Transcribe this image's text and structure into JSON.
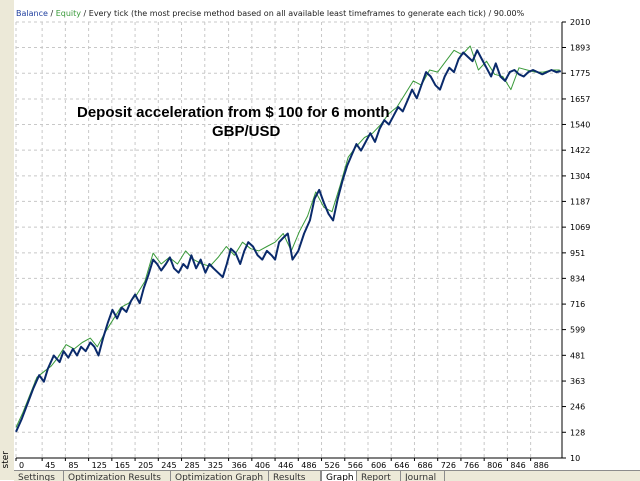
{
  "window": {
    "side_label": "ster"
  },
  "header": {
    "balance": "Balance",
    "sep": " / ",
    "equity": "Equity",
    "rest": " / Every tick (the most precise method based on all available least timeframes to generate each tick)  / 90.00%"
  },
  "colors": {
    "balance": "#0a2a6b",
    "equity": "#3a9a3a",
    "grid": "#c8c8c8",
    "header_balance": "#1f3f9f",
    "header_equity": "#3a9a3a"
  },
  "tabs": [
    {
      "label": "Settings",
      "active": false
    },
    {
      "label": "Optimization Results",
      "active": false
    },
    {
      "label": "Optimization Graph",
      "active": false
    },
    {
      "label": "Results",
      "active": false
    },
    {
      "label": "Graph",
      "active": true
    },
    {
      "label": "Report",
      "active": false
    },
    {
      "label": "Journal",
      "active": false
    }
  ],
  "chart_data": {
    "type": "line",
    "title": "Deposit  acceleration from $ 100 for 6 month",
    "subtitle": "GBP/USD",
    "xlim": [
      0,
      940
    ],
    "ylim": [
      10,
      2010
    ],
    "xticks": [
      0,
      45,
      85,
      125,
      165,
      205,
      245,
      285,
      325,
      366,
      406,
      446,
      486,
      526,
      566,
      606,
      646,
      686,
      726,
      766,
      806,
      846,
      886
    ],
    "yticks": [
      10,
      128,
      246,
      363,
      481,
      599,
      716,
      834,
      951,
      1069,
      1187,
      1304,
      1422,
      1540,
      1657,
      1775,
      1893,
      2010
    ],
    "grid": true,
    "series": [
      {
        "name": "Balance",
        "x": [
          0,
          10,
          20,
          30,
          40,
          48,
          55,
          65,
          75,
          82,
          90,
          98,
          105,
          112,
          120,
          128,
          135,
          142,
          150,
          158,
          166,
          174,
          182,
          190,
          198,
          205,
          213,
          220,
          228,
          236,
          243,
          250,
          258,
          265,
          272,
          280,
          288,
          295,
          302,
          310,
          318,
          326,
          333,
          340,
          348,
          356,
          363,
          370,
          378,
          386,
          393,
          400,
          408,
          416,
          424,
          432,
          440,
          446,
          453,
          460,
          468,
          476,
          486,
          496,
          506,
          514,
          522,
          530,
          538,
          546,
          554,
          562,
          570,
          578,
          586,
          594,
          602,
          610,
          618,
          626,
          634,
          642,
          650,
          658,
          666,
          674,
          682,
          690,
          698,
          706,
          714,
          722,
          730,
          738,
          746,
          754,
          762,
          770,
          778,
          786,
          794,
          802,
          810,
          818,
          826,
          834,
          842,
          850,
          858,
          866,
          874,
          882,
          890,
          898,
          906,
          914,
          922,
          930,
          938
        ],
        "values": [
          130,
          190,
          260,
          330,
          390,
          360,
          420,
          480,
          450,
          500,
          470,
          510,
          480,
          520,
          500,
          540,
          520,
          480,
          560,
          630,
          690,
          650,
          700,
          680,
          730,
          760,
          720,
          790,
          850,
          920,
          900,
          870,
          900,
          930,
          880,
          860,
          900,
          880,
          940,
          880,
          920,
          860,
          900,
          880,
          860,
          840,
          900,
          970,
          950,
          900,
          960,
          1000,
          980,
          940,
          920,
          960,
          940,
          920,
          1000,
          1020,
          1040,
          920,
          960,
          1040,
          1100,
          1200,
          1240,
          1180,
          1130,
          1100,
          1200,
          1280,
          1350,
          1400,
          1450,
          1420,
          1460,
          1500,
          1460,
          1520,
          1560,
          1540,
          1580,
          1620,
          1600,
          1650,
          1700,
          1660,
          1720,
          1780,
          1760,
          1720,
          1700,
          1760,
          1800,
          1780,
          1840,
          1870,
          1850,
          1830,
          1880,
          1840,
          1800,
          1760,
          1820,
          1760,
          1740,
          1780,
          1790,
          1770,
          1760,
          1780,
          1790,
          1780,
          1770,
          1780,
          1790,
          1780,
          1785
        ],
        "color": "#0a2a6b"
      },
      {
        "name": "Equity",
        "x": [
          0,
          12,
          24,
          36,
          50,
          60,
          72,
          86,
          100,
          114,
          128,
          140,
          152,
          166,
          180,
          194,
          208,
          222,
          236,
          250,
          264,
          278,
          292,
          306,
          320,
          334,
          348,
          362,
          376,
          390,
          404,
          418,
          432,
          446,
          460,
          474,
          488,
          502,
          516,
          530,
          544,
          558,
          572,
          586,
          600,
          614,
          628,
          642,
          656,
          670,
          684,
          698,
          712,
          726,
          740,
          754,
          768,
          782,
          796,
          810,
          824,
          838,
          852,
          866,
          880,
          894,
          908,
          922,
          936
        ],
        "values": [
          150,
          220,
          300,
          380,
          410,
          430,
          470,
          530,
          510,
          540,
          560,
          520,
          580,
          640,
          700,
          720,
          760,
          820,
          950,
          900,
          930,
          900,
          960,
          920,
          900,
          890,
          930,
          980,
          940,
          1000,
          970,
          960,
          980,
          1000,
          1040,
          960,
          1050,
          1120,
          1230,
          1160,
          1140,
          1260,
          1390,
          1440,
          1480,
          1500,
          1540,
          1590,
          1620,
          1680,
          1740,
          1720,
          1790,
          1780,
          1830,
          1880,
          1860,
          1900,
          1790,
          1830,
          1770,
          1760,
          1700,
          1800,
          1790,
          1780,
          1780,
          1790,
          1790
        ],
        "color": "#3a9a3a"
      }
    ]
  }
}
